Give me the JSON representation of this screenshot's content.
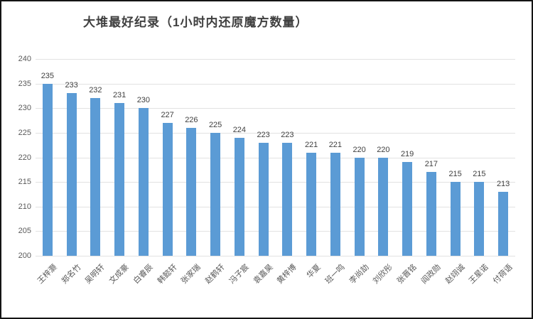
{
  "colors": {
    "bar": "#5b9bd5",
    "gridline": "#e2e2e2",
    "axis_text": "#595959",
    "value_label_text": "#404040",
    "title_text": "#3f3f3f",
    "frame_border": "#141414",
    "background": "#ffffff"
  },
  "chart_data": {
    "type": "bar",
    "title": "大堆最好纪录（1小时内还原魔方数量）",
    "xlabel": "",
    "ylabel": "",
    "categories": [
      "王梓灏",
      "郑名竹",
      "吴明轩",
      "文成豪",
      "白睿辰",
      "韩懿轩",
      "张家瑞",
      "赵鹤轩",
      "冯子宸",
      "袁嘉昊",
      "黄梓博",
      "华夏",
      "班一鸣",
      "李尚劼",
      "刘欣彤",
      "张晋铭",
      "阎政勋",
      "赵翊诚",
      "王星诺",
      "付荷语"
    ],
    "values": [
      235,
      233,
      232,
      231,
      230,
      227,
      226,
      225,
      224,
      223,
      223,
      221,
      221,
      220,
      220,
      219,
      217,
      215,
      215,
      213
    ],
    "ylim": [
      200,
      240
    ],
    "ytick_step": 5,
    "yticks": [
      200,
      205,
      210,
      215,
      220,
      225,
      230,
      235,
      240
    ],
    "grid": true,
    "value_labels_shown": true,
    "legend": "none",
    "x_label_rotation_deg": 45
  }
}
